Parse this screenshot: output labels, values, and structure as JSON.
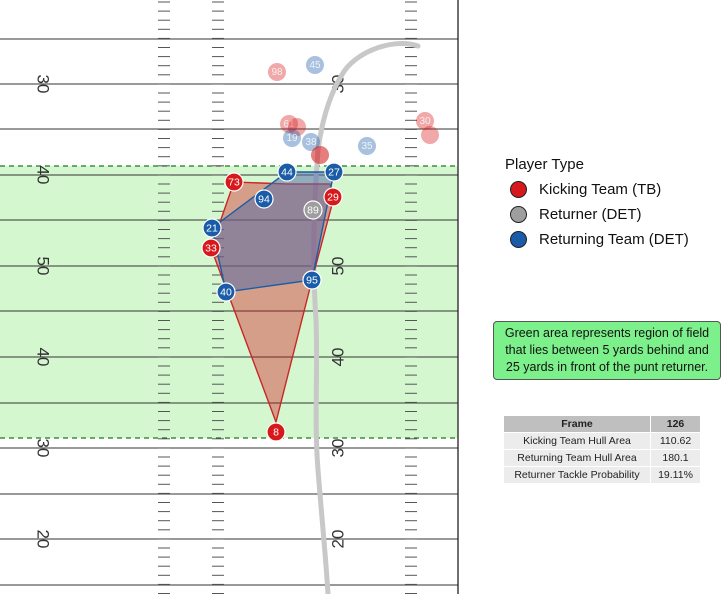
{
  "colors": {
    "kicking": "#d7191c",
    "returner": "#9e9e9e",
    "returning": "#1a5ca8",
    "zone": "#d4f7d0",
    "note_bg": "#7CF08A"
  },
  "field": {
    "yard_numbers": [
      {
        "label": "30",
        "side": "left"
      },
      {
        "label": "30",
        "side": "right"
      },
      {
        "label": "40",
        "side": "left"
      },
      {
        "label": "50",
        "side": "left"
      },
      {
        "label": "50",
        "side": "right"
      },
      {
        "label": "40",
        "side": "left"
      },
      {
        "label": "40",
        "side": "right"
      },
      {
        "label": "30",
        "side": "left"
      },
      {
        "label": "30",
        "side": "right"
      },
      {
        "label": "20",
        "side": "left"
      },
      {
        "label": "20",
        "side": "right"
      }
    ]
  },
  "players_current": [
    {
      "team": "kicking",
      "label": "73"
    },
    {
      "team": "kicking",
      "label": "29"
    },
    {
      "team": "kicking",
      "label": "33"
    },
    {
      "team": "kicking",
      "label": "95"
    },
    {
      "team": "kicking",
      "label": "8"
    },
    {
      "team": "returning",
      "label": "44"
    },
    {
      "team": "returning",
      "label": "27"
    },
    {
      "team": "returning",
      "label": "94"
    },
    {
      "team": "returning",
      "label": "21"
    },
    {
      "team": "returning",
      "label": "40"
    },
    {
      "team": "returning",
      "label": "95"
    },
    {
      "team": "returner",
      "label": "89"
    }
  ],
  "players_ghost": [
    {
      "team": "kicking",
      "label": "98"
    },
    {
      "team": "returning",
      "label": "45"
    },
    {
      "team": "kicking",
      "label": "61"
    },
    {
      "team": "kicking",
      "label": ""
    },
    {
      "team": "returning",
      "label": "19"
    },
    {
      "team": "returning",
      "label": "38"
    },
    {
      "team": "returning",
      "label": "35"
    },
    {
      "team": "kicking",
      "label": "30"
    },
    {
      "team": "kicking",
      "label": ""
    },
    {
      "team": "kicking",
      "label": ""
    }
  ],
  "legend": {
    "title": "Player Type",
    "items": [
      {
        "label": "Kicking Team (TB)",
        "team": "kicking"
      },
      {
        "label": "Returner (DET)",
        "team": "returner"
      },
      {
        "label": "Returning Team (DET)",
        "team": "returning"
      }
    ]
  },
  "note": "Green area represents region of field that lies between 5 yards behind and 25 yards in front of the punt returner.",
  "table": {
    "header": [
      "Frame",
      "126"
    ],
    "rows": [
      [
        "Kicking Team Hull Area",
        "110.62"
      ],
      [
        "Returning Team Hull Area",
        "180.1"
      ],
      [
        "Returner Tackle Probability",
        "19.11%"
      ]
    ]
  }
}
